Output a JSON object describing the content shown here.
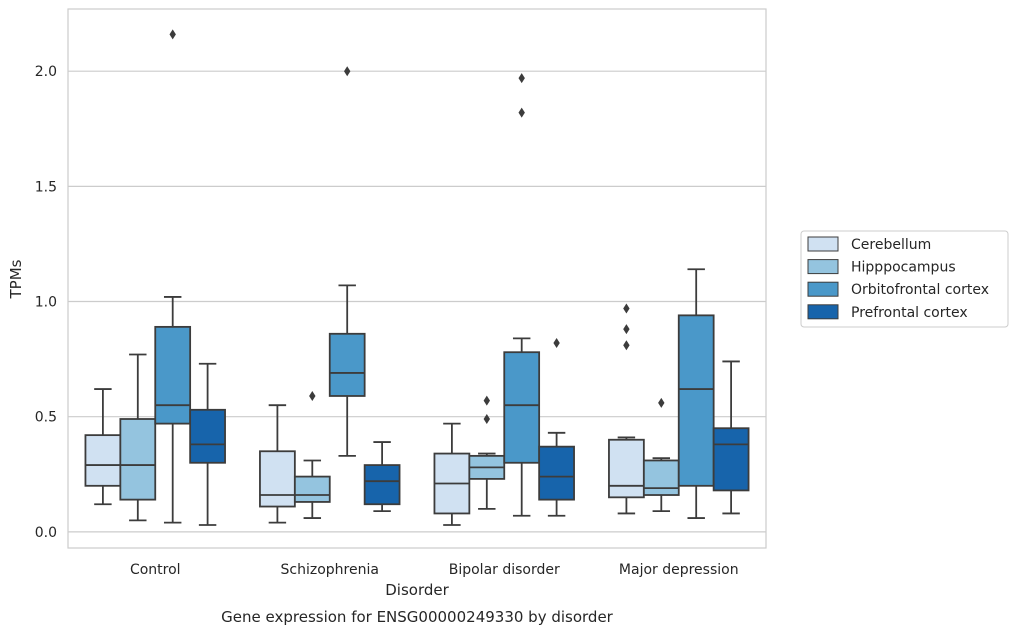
{
  "chart_data": {
    "type": "box",
    "title": "",
    "xlabel": "Disorder",
    "ylabel": "TPMs",
    "caption": "Gene expression for ENSG00000249330 by disorder",
    "ylim": [
      -0.07,
      2.27
    ],
    "yticks": [
      "0.0",
      "0.5",
      "1.0",
      "1.5",
      "2.0"
    ],
    "categories": [
      "Control",
      "Schizophrenia",
      "Bipolar disorder",
      "Major depression"
    ],
    "grid": true,
    "legend_position": "right",
    "series": [
      {
        "name": "Cerebellum",
        "color": "#d0e1f2",
        "boxes": [
          {
            "whislo": 0.12,
            "q1": 0.2,
            "med": 0.29,
            "q3": 0.42,
            "whishi": 0.62,
            "fliers": []
          },
          {
            "whislo": 0.04,
            "q1": 0.11,
            "med": 0.16,
            "q3": 0.35,
            "whishi": 0.55,
            "fliers": []
          },
          {
            "whislo": 0.03,
            "q1": 0.08,
            "med": 0.21,
            "q3": 0.34,
            "whishi": 0.47,
            "fliers": []
          },
          {
            "whislo": 0.08,
            "q1": 0.15,
            "med": 0.2,
            "q3": 0.4,
            "whishi": 0.41,
            "fliers": [
              0.81,
              0.88,
              0.97
            ]
          }
        ]
      },
      {
        "name": "Hipppocampus",
        "color": "#94c4df",
        "boxes": [
          {
            "whislo": 0.05,
            "q1": 0.14,
            "med": 0.29,
            "q3": 0.49,
            "whishi": 0.77,
            "fliers": []
          },
          {
            "whislo": 0.06,
            "q1": 0.13,
            "med": 0.16,
            "q3": 0.24,
            "whishi": 0.31,
            "fliers": [
              0.59
            ]
          },
          {
            "whislo": 0.1,
            "q1": 0.23,
            "med": 0.28,
            "q3": 0.33,
            "whishi": 0.34,
            "fliers": [
              0.49,
              0.57
            ]
          },
          {
            "whislo": 0.09,
            "q1": 0.16,
            "med": 0.19,
            "q3": 0.31,
            "whishi": 0.32,
            "fliers": [
              0.56
            ]
          }
        ]
      },
      {
        "name": "Orbitofrontal cortex",
        "color": "#4a98c9",
        "boxes": [
          {
            "whislo": 0.04,
            "q1": 0.47,
            "med": 0.55,
            "q3": 0.89,
            "whishi": 1.02,
            "fliers": [
              2.16
            ]
          },
          {
            "whislo": 0.33,
            "q1": 0.59,
            "med": 0.69,
            "q3": 0.86,
            "whishi": 1.07,
            "fliers": [
              2.0
            ]
          },
          {
            "whislo": 0.07,
            "q1": 0.3,
            "med": 0.55,
            "q3": 0.78,
            "whishi": 0.84,
            "fliers": [
              1.82,
              1.97
            ]
          },
          {
            "whislo": 0.06,
            "q1": 0.2,
            "med": 0.62,
            "q3": 0.94,
            "whishi": 1.14,
            "fliers": []
          }
        ]
      },
      {
        "name": "Prefrontal cortex",
        "color": "#1764ab",
        "boxes": [
          {
            "whislo": 0.03,
            "q1": 0.3,
            "med": 0.38,
            "q3": 0.53,
            "whishi": 0.73,
            "fliers": []
          },
          {
            "whislo": 0.09,
            "q1": 0.12,
            "med": 0.22,
            "q3": 0.29,
            "whishi": 0.39,
            "fliers": []
          },
          {
            "whislo": 0.07,
            "q1": 0.14,
            "med": 0.24,
            "q3": 0.37,
            "whishi": 0.43,
            "fliers": [
              0.82
            ]
          },
          {
            "whislo": 0.08,
            "q1": 0.18,
            "med": 0.38,
            "q3": 0.45,
            "whishi": 0.74,
            "fliers": []
          }
        ]
      }
    ]
  }
}
